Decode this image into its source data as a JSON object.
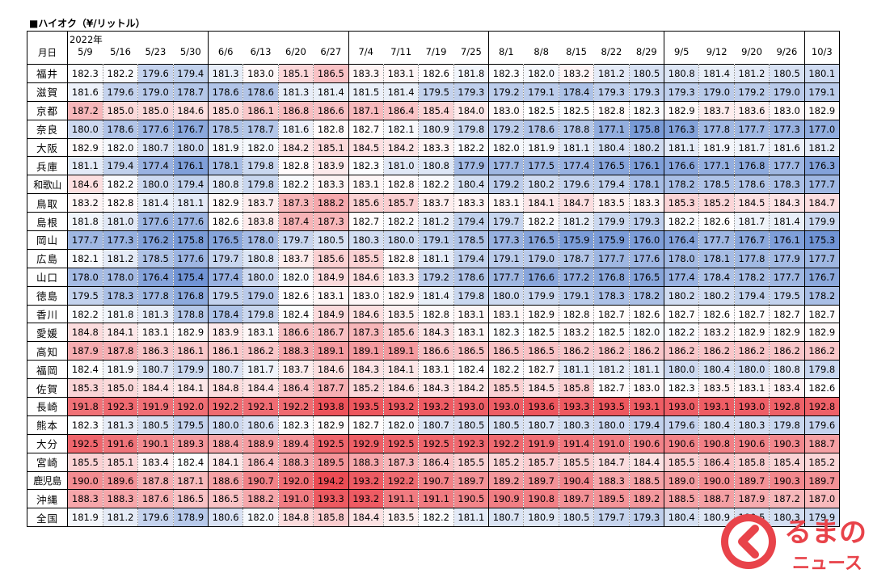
{
  "title": "■ハイオク（¥/リットル）",
  "chart_data": {
    "type": "table",
    "title": "■ハイオク（¥/リットル）",
    "row_header_label": "月日",
    "year_label": "2022年",
    "columns": [
      "5/9",
      "5/16",
      "5/23",
      "5/30",
      "6/6",
      "6/13",
      "6/20",
      "6/27",
      "7/4",
      "7/11",
      "7/19",
      "7/25",
      "8/1",
      "8/8",
      "8/15",
      "8/22",
      "8/29",
      "9/5",
      "9/12",
      "9/20",
      "9/26",
      "10/3"
    ],
    "rows": [
      {
        "name": "福井",
        "values": [
          182.3,
          182.2,
          179.6,
          179.4,
          181.3,
          183.0,
          185.1,
          186.5,
          183.3,
          183.1,
          182.6,
          181.8,
          182.3,
          182.0,
          183.2,
          181.2,
          180.5,
          180.8,
          181.4,
          181.2,
          180.5,
          180.1
        ]
      },
      {
        "name": "滋賀",
        "values": [
          181.6,
          179.6,
          179.0,
          178.7,
          178.6,
          178.6,
          181.3,
          181.4,
          181.5,
          181.4,
          179.5,
          179.3,
          179.2,
          179.1,
          178.4,
          179.3,
          179.3,
          179.3,
          179.0,
          179.2,
          179.0,
          179.1
        ]
      },
      {
        "name": "京都",
        "values": [
          187.2,
          185.0,
          185.0,
          184.6,
          185.0,
          186.1,
          186.8,
          186.6,
          187.1,
          186.4,
          185.4,
          184.0,
          183.0,
          182.5,
          182.5,
          182.8,
          182.3,
          182.9,
          183.7,
          183.6,
          183.0,
          182.9
        ]
      },
      {
        "name": "奈良",
        "values": [
          180.0,
          178.6,
          177.6,
          176.7,
          178.5,
          178.7,
          181.6,
          182.8,
          182.7,
          182.1,
          180.9,
          179.8,
          179.2,
          178.6,
          178.8,
          177.1,
          175.8,
          176.3,
          177.8,
          177.7,
          177.3,
          177.0
        ]
      },
      {
        "name": "大阪",
        "values": [
          182.9,
          182.0,
          180.7,
          180.0,
          181.9,
          182.0,
          184.2,
          185.1,
          184.5,
          184.2,
          183.3,
          182.2,
          182.0,
          181.9,
          181.1,
          180.4,
          180.2,
          181.1,
          181.9,
          181.7,
          181.6,
          181.2
        ]
      },
      {
        "name": "兵庫",
        "values": [
          181.1,
          179.4,
          177.4,
          176.1,
          178.1,
          179.8,
          182.8,
          183.9,
          182.3,
          181.0,
          180.8,
          177.9,
          177.7,
          177.5,
          177.4,
          176.5,
          176.1,
          176.6,
          177.1,
          176.8,
          177.7,
          176.3
        ]
      },
      {
        "name": "和歌山",
        "values": [
          184.6,
          182.2,
          180.0,
          179.4,
          180.8,
          179.8,
          182.2,
          183.3,
          183.1,
          182.8,
          182.2,
          180.4,
          179.2,
          180.2,
          179.6,
          179.4,
          178.1,
          178.2,
          178.5,
          178.6,
          178.3,
          177.7
        ]
      },
      {
        "name": "鳥取",
        "values": [
          183.2,
          182.8,
          181.4,
          181.1,
          182.9,
          183.7,
          187.3,
          188.2,
          185.6,
          185.7,
          183.7,
          183.3,
          183.1,
          184.1,
          184.7,
          183.5,
          183.3,
          185.3,
          185.2,
          184.5,
          184.3,
          184.7
        ]
      },
      {
        "name": "島根",
        "values": [
          181.8,
          181.0,
          177.6,
          177.6,
          182.6,
          183.8,
          187.4,
          187.3,
          182.7,
          182.2,
          181.2,
          179.4,
          179.7,
          182.2,
          181.2,
          179.9,
          179.3,
          182.2,
          182.6,
          181.7,
          181.4,
          179.9
        ]
      },
      {
        "name": "岡山",
        "values": [
          177.7,
          177.3,
          176.2,
          175.8,
          176.5,
          178.0,
          179.7,
          180.5,
          180.3,
          180.0,
          179.1,
          178.5,
          177.3,
          176.5,
          175.9,
          175.9,
          176.0,
          176.4,
          177.7,
          176.7,
          176.1,
          175.3
        ]
      },
      {
        "name": "広島",
        "values": [
          182.1,
          181.2,
          178.5,
          177.6,
          179.7,
          180.8,
          183.7,
          185.6,
          185.5,
          182.8,
          181.1,
          179.4,
          179.1,
          179.0,
          178.7,
          177.7,
          177.6,
          178.0,
          178.1,
          177.8,
          177.9,
          177.7
        ]
      },
      {
        "name": "山口",
        "values": [
          178.0,
          178.0,
          176.4,
          175.4,
          177.4,
          180.0,
          182.0,
          184.9,
          184.6,
          183.3,
          179.2,
          178.6,
          177.7,
          176.6,
          177.2,
          176.8,
          176.5,
          177.4,
          178.4,
          178.2,
          177.7,
          176.7
        ]
      },
      {
        "name": "徳島",
        "values": [
          179.5,
          178.3,
          177.8,
          176.8,
          179.5,
          179.0,
          182.6,
          183.1,
          183.0,
          182.9,
          181.4,
          179.8,
          180.0,
          179.9,
          179.1,
          178.3,
          178.2,
          180.2,
          180.2,
          179.4,
          179.5,
          178.2
        ]
      },
      {
        "name": "香川",
        "values": [
          182.2,
          181.8,
          181.3,
          178.8,
          178.4,
          179.8,
          182.4,
          184.9,
          184.6,
          183.5,
          182.8,
          183.1,
          183.1,
          182.9,
          182.8,
          182.7,
          182.6,
          182.7,
          182.6,
          182.7,
          182.7,
          182.7
        ]
      },
      {
        "name": "愛媛",
        "values": [
          184.8,
          184.1,
          183.1,
          182.9,
          183.9,
          183.1,
          186.6,
          186.7,
          187.3,
          185.6,
          184.3,
          183.1,
          182.3,
          182.5,
          183.2,
          182.5,
          182.0,
          182.2,
          183.2,
          182.9,
          182.9,
          182.9
        ]
      },
      {
        "name": "高知",
        "values": [
          187.9,
          187.8,
          186.3,
          186.1,
          186.1,
          186.2,
          188.3,
          189.1,
          189.1,
          189.1,
          186.6,
          186.5,
          186.5,
          186.5,
          186.2,
          186.2,
          186.2,
          186.2,
          186.2,
          186.2,
          186.2,
          186.2
        ]
      },
      {
        "name": "福岡",
        "values": [
          182.4,
          181.9,
          180.7,
          179.9,
          180.7,
          181.7,
          183.7,
          184.6,
          184.3,
          184.1,
          183.1,
          182.4,
          182.2,
          182.7,
          181.1,
          181.2,
          181.1,
          180.0,
          180.4,
          180.0,
          180.8,
          179.8
        ]
      },
      {
        "name": "佐賀",
        "values": [
          185.3,
          185.0,
          184.4,
          184.1,
          184.8,
          184.4,
          186.4,
          187.7,
          185.2,
          184.6,
          184.3,
          184.2,
          185.5,
          184.5,
          185.8,
          182.7,
          183.0,
          182.3,
          183.5,
          183.1,
          183.4,
          182.6
        ]
      },
      {
        "name": "長崎",
        "values": [
          191.8,
          192.3,
          191.9,
          192.0,
          192.2,
          192.1,
          192.2,
          193.8,
          193.5,
          193.2,
          193.2,
          193.0,
          193.0,
          193.6,
          193.3,
          193.5,
          193.1,
          193.0,
          193.1,
          193.0,
          192.8,
          192.8
        ]
      },
      {
        "name": "熊本",
        "values": [
          182.3,
          181.3,
          180.5,
          179.5,
          180.0,
          180.6,
          182.3,
          182.9,
          182.7,
          182.0,
          180.7,
          180.5,
          180.5,
          180.7,
          180.3,
          180.0,
          179.4,
          179.6,
          180.4,
          180.3,
          179.8,
          179.6
        ]
      },
      {
        "name": "大分",
        "values": [
          192.5,
          191.6,
          190.1,
          189.3,
          188.4,
          188.9,
          189.4,
          192.5,
          192.9,
          192.5,
          192.5,
          192.3,
          192.2,
          191.9,
          191.4,
          191.0,
          190.6,
          190.6,
          190.8,
          190.6,
          190.3,
          188.7
        ]
      },
      {
        "name": "宮崎",
        "values": [
          185.5,
          185.1,
          183.4,
          182.4,
          184.1,
          186.4,
          188.3,
          189.5,
          188.3,
          187.3,
          186.4,
          185.5,
          185.2,
          185.7,
          185.5,
          184.7,
          184.4,
          185.5,
          186.4,
          185.8,
          185.4,
          185.2
        ]
      },
      {
        "name": "鹿児島",
        "values": [
          190.0,
          189.6,
          187.8,
          187.1,
          188.6,
          190.7,
          192.0,
          194.2,
          193.2,
          192.2,
          190.7,
          189.7,
          189.2,
          189.7,
          190.4,
          188.3,
          188.5,
          189.0,
          190.0,
          189.7,
          190.3,
          189.7
        ]
      },
      {
        "name": "沖縄",
        "values": [
          188.3,
          188.3,
          187.6,
          186.5,
          186.5,
          188.2,
          191.0,
          193.3,
          193.2,
          191.1,
          191.1,
          190.5,
          190.9,
          190.8,
          189.7,
          189.5,
          189.2,
          188.5,
          188.7,
          187.9,
          187.2,
          187.0
        ]
      },
      {
        "name": "全国",
        "values": [
          181.9,
          181.2,
          179.6,
          178.9,
          180.6,
          182.0,
          184.8,
          185.8,
          184.4,
          183.5,
          182.2,
          181.1,
          180.7,
          180.9,
          180.5,
          179.7,
          179.3,
          180.4,
          180.9,
          180.5,
          180.3,
          179.9
        ]
      }
    ],
    "color_scale": {
      "low": "#6f93d4",
      "mid": "#ffffff",
      "high": "#ec4c54"
    }
  },
  "logo": {
    "text_top": "るまの",
    "text_bottom": "ニュース",
    "color": "#e8434a"
  }
}
